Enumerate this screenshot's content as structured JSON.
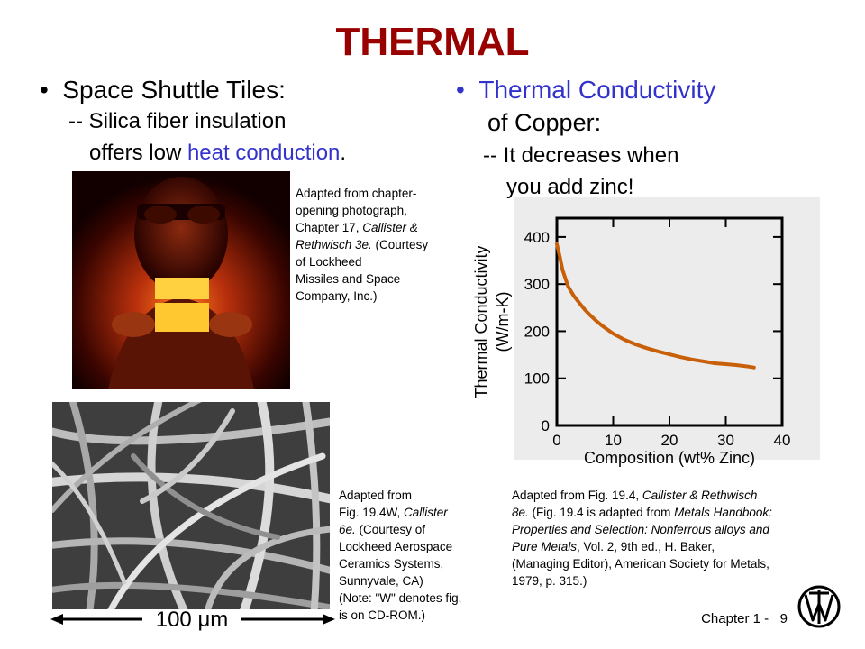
{
  "title": "THERMAL",
  "left": {
    "bullet": "Space Shuttle Tiles:",
    "line1": "-- Silica fiber insulation",
    "line2_plain": "offers low ",
    "line2_emph": "heat conduction",
    "line2_end": ".",
    "photo_caption": [
      {
        "text": "Adapted from chapter-"
      },
      {
        "text": "opening photograph,"
      },
      {
        "text": "Chapter 17, "
      },
      {
        "text": "Callister &"
      },
      {
        "text": "Rethwisch 3e."
      },
      {
        "text": " (Courtesy"
      },
      {
        "text": "of Lockheed"
      },
      {
        "text": "Missiles and Space"
      },
      {
        "text": "Company, Inc.)"
      }
    ],
    "sem_caption": {
      "l1": "Adapted from",
      "l2a": "Fig. 19.4W, ",
      "l2b": "Callister",
      "l3a": "6e.",
      "l3b": "  (Courtesy of",
      "l4": "Lockheed Aerospace",
      "l5": "Ceramics Systems,",
      "l6": "Sunnyvale, CA)",
      "l7": "(Note:  \"W\" denotes fig.",
      "l8": "is on CD-ROM.)"
    },
    "scale_bar": "100 μm"
  },
  "right": {
    "bullet": "Thermal Conductivity",
    "line_of": "of Copper:",
    "line1": "-- It decreases when",
    "line2": "you add zinc!",
    "caption": {
      "l1a": "Adapted from Fig. 19.4, ",
      "l1b": "Callister & Rethwisch",
      "l2a": "8e.",
      "l2b": " (Fig. 19.4 is adapted from ",
      "l2c": "Metals Handbook:",
      "l3": "Properties and Selection: Nonferrous alloys and",
      "l4a": "Pure Metals",
      "l4b": ", Vol. 2, 9th ed., H. Baker,",
      "l5": "(Managing Editor), American Society for Metals,",
      "l6": "1979, p. 315.)"
    }
  },
  "chart_data": {
    "type": "line",
    "xlabel": "Composition (wt% Zinc)",
    "ylabel": "Thermal Conductivity (W/m-K)",
    "xlim": [
      0,
      40
    ],
    "ylim": [
      0,
      440
    ],
    "xticks": [
      "0",
      "10",
      "20",
      "30",
      "40"
    ],
    "yticks": [
      "0",
      "100",
      "200",
      "300",
      "400"
    ],
    "grid": false,
    "color": "#c8600a",
    "series": [
      {
        "x": [
          0,
          0.5,
          1,
          2,
          3,
          4,
          5,
          6,
          7,
          8,
          10,
          12,
          14,
          16,
          18,
          20,
          22,
          24,
          26,
          28,
          30,
          32,
          34,
          35
        ],
        "values": [
          385,
          360,
          330,
          295,
          275,
          260,
          245,
          233,
          222,
          212,
          195,
          182,
          172,
          164,
          157,
          151,
          145,
          140,
          136,
          132,
          130,
          128,
          125,
          123
        ]
      }
    ]
  },
  "footer": {
    "chapter": "Chapter 1 -",
    "page": "9"
  },
  "colors": {
    "title": "#990000",
    "emphasis": "#3333cc",
    "curve": "#c8600a"
  },
  "logo_icon": "wiley-logo-icon"
}
